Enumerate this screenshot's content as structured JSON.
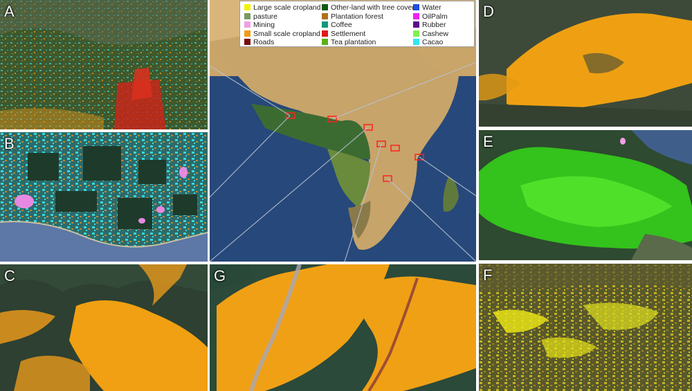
{
  "panels": {
    "A": {
      "label": "A"
    },
    "B": {
      "label": "B"
    },
    "C": {
      "label": "C"
    },
    "D": {
      "label": "D"
    },
    "E": {
      "label": "E"
    },
    "F": {
      "label": "F"
    },
    "G": {
      "label": "G"
    }
  },
  "legend": [
    {
      "label": "Large scale cropland",
      "color": "#f2f200"
    },
    {
      "label": "pasture",
      "color": "#7a9a63"
    },
    {
      "label": "Mining",
      "color": "#f2a0e6"
    },
    {
      "label": "Small scale cropland",
      "color": "#f39c12"
    },
    {
      "label": "Roads",
      "color": "#7a0b0b"
    },
    {
      "label": "Other-land with tree cover",
      "color": "#0b5a12"
    },
    {
      "label": "Plantation forest",
      "color": "#b0701a"
    },
    {
      "label": "Coffee",
      "color": "#0e9a76"
    },
    {
      "label": "Settlement",
      "color": "#e01a1a"
    },
    {
      "label": "Tea plantation",
      "color": "#5cb01a"
    },
    {
      "label": "Water",
      "color": "#1f4ee0"
    },
    {
      "label": "OilPalm",
      "color": "#ee22ee"
    },
    {
      "label": "Rubber",
      "color": "#5a0a8a"
    },
    {
      "label": "Cashew",
      "color": "#80f050"
    },
    {
      "label": "Cacao",
      "color": "#30e8f0"
    }
  ]
}
